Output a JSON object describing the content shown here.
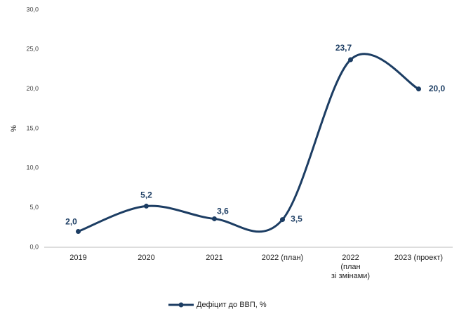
{
  "chart_data": {
    "type": "line",
    "categories": [
      "2019",
      "2020",
      "2021",
      "2022 (план)",
      "2022\n(план\nзі змінами)",
      "2023 (проект)"
    ],
    "series": [
      {
        "name": "Дефіцит до ВВП, %",
        "color": "#1c3d63",
        "values": [
          2.0,
          5.2,
          3.6,
          3.5,
          23.7,
          20.0
        ],
        "value_labels": [
          "2,0",
          "5,2",
          "3,6",
          "3,5",
          "23,7",
          "20,0"
        ]
      }
    ],
    "ylabel": "%",
    "ylim": [
      0,
      30
    ],
    "yticks": [
      {
        "value": 0,
        "label": "0,0"
      },
      {
        "value": 5,
        "label": "5,0"
      },
      {
        "value": 10,
        "label": "10,0"
      },
      {
        "value": 15,
        "label": "15,0"
      },
      {
        "value": 20,
        "label": "20,0"
      },
      {
        "value": 25,
        "label": "25,0"
      },
      {
        "value": 30,
        "label": "30,0"
      }
    ],
    "legend": "bottom",
    "smooth": true
  }
}
